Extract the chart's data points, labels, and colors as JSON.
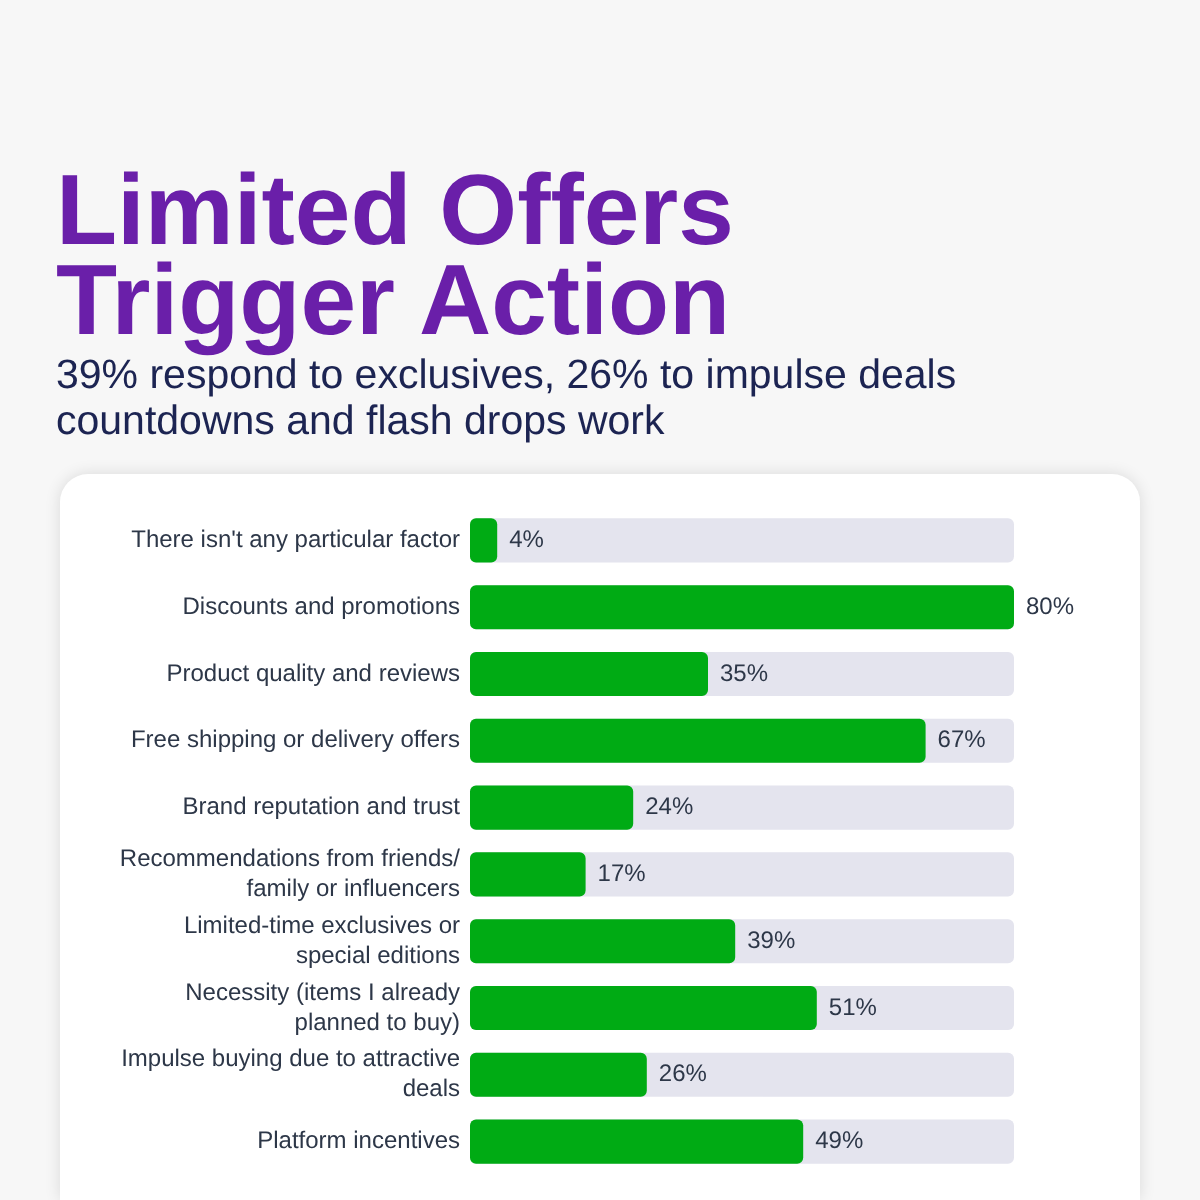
{
  "chart_data": {
    "type": "bar",
    "orientation": "horizontal",
    "title": "Limited Offers Trigger Action",
    "subtitle": "39% respond to exclusives, 26% to impulse deals countdowns and flash drops work",
    "categories": [
      "There isn't any particular factor",
      "Discounts and promotions",
      "Product quality and reviews",
      "Free shipping or delivery offers",
      "Brand reputation and trust",
      "Recommendations from friends/ family or influencers",
      "Limited-time exclusives or special editions",
      "Necessity (items I already planned to buy)",
      "Impulse buying due to attractive deals",
      "Platform incentives"
    ],
    "values": [
      4,
      80,
      35,
      67,
      24,
      17,
      39,
      51,
      26,
      49
    ],
    "value_labels": [
      "4%",
      "80%",
      "35%",
      "67%",
      "24%",
      "17%",
      "39%",
      "51%",
      "26%",
      "49%"
    ],
    "color": "#00ab14",
    "tick_labels": "y",
    "grid": false,
    "legend": false
  }
}
